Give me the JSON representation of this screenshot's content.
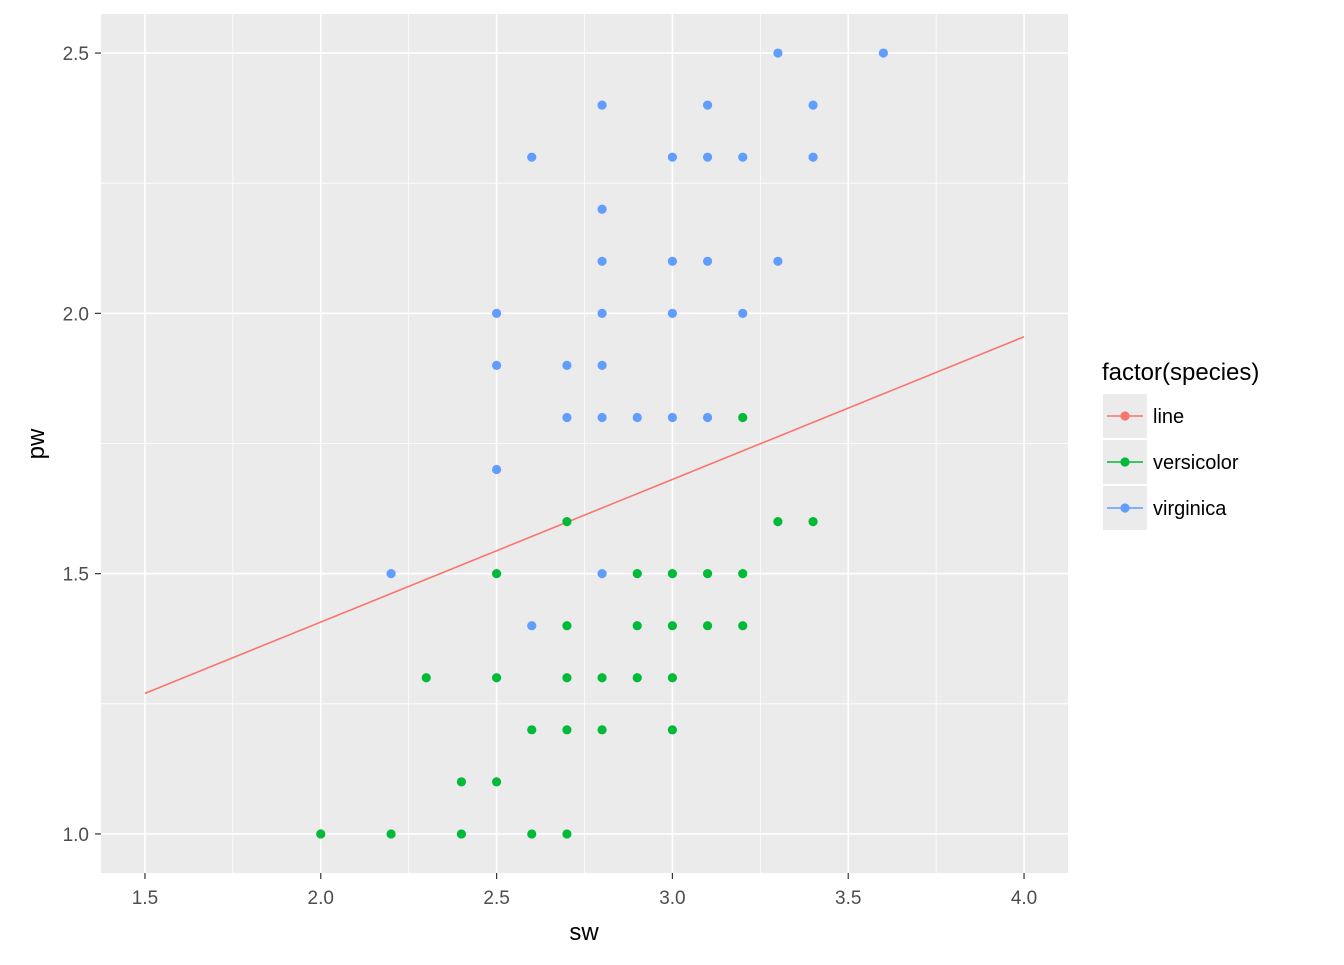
{
  "chart_data": {
    "type": "scatter",
    "xlabel": "sw",
    "ylabel": "pw",
    "xlim": [
      1.375,
      4.125
    ],
    "ylim": [
      0.925,
      2.575
    ],
    "x_ticks": [
      1.5,
      2.0,
      2.5,
      3.0,
      3.5,
      4.0
    ],
    "x_tick_labels": [
      "1.5",
      "2.0",
      "2.5",
      "3.0",
      "3.5",
      "4.0"
    ],
    "y_ticks": [
      1.0,
      1.5,
      2.0,
      2.5
    ],
    "y_tick_labels": [
      "1.0",
      "1.5",
      "2.0",
      "2.5"
    ],
    "grid": true,
    "legend": {
      "title": "factor(species)",
      "placement": "right",
      "entries": [
        "line",
        "versicolor",
        "virginica"
      ]
    },
    "series": [
      {
        "name": "line",
        "kind": "line",
        "color": "#F8766D",
        "points": [
          [
            1.5,
            1.27
          ],
          [
            4.0,
            1.955
          ]
        ]
      },
      {
        "name": "versicolor",
        "kind": "points",
        "color": "#00BA38",
        "points": [
          [
            2.0,
            1.0
          ],
          [
            2.2,
            1.0
          ],
          [
            2.4,
            1.0
          ],
          [
            2.6,
            1.0
          ],
          [
            2.7,
            1.0
          ],
          [
            2.4,
            1.1
          ],
          [
            2.5,
            1.1
          ],
          [
            2.6,
            1.2
          ],
          [
            2.7,
            1.2
          ],
          [
            2.8,
            1.2
          ],
          [
            3.0,
            1.2
          ],
          [
            2.3,
            1.3
          ],
          [
            2.5,
            1.3
          ],
          [
            2.7,
            1.3
          ],
          [
            2.8,
            1.3
          ],
          [
            2.9,
            1.3
          ],
          [
            3.0,
            1.3
          ],
          [
            2.7,
            1.4
          ],
          [
            2.9,
            1.4
          ],
          [
            3.0,
            1.4
          ],
          [
            3.1,
            1.4
          ],
          [
            3.2,
            1.4
          ],
          [
            2.5,
            1.5
          ],
          [
            2.9,
            1.5
          ],
          [
            3.0,
            1.5
          ],
          [
            3.1,
            1.5
          ],
          [
            3.2,
            1.5
          ],
          [
            2.7,
            1.6
          ],
          [
            3.3,
            1.6
          ],
          [
            3.4,
            1.6
          ],
          [
            3.2,
            1.8
          ]
        ]
      },
      {
        "name": "virginica",
        "kind": "points",
        "color": "#619CFF",
        "points": [
          [
            2.6,
            1.4
          ],
          [
            2.2,
            1.5
          ],
          [
            2.8,
            1.5
          ],
          [
            2.5,
            1.7
          ],
          [
            2.7,
            1.8
          ],
          [
            2.8,
            1.8
          ],
          [
            2.9,
            1.8
          ],
          [
            3.0,
            1.8
          ],
          [
            3.1,
            1.8
          ],
          [
            2.5,
            1.9
          ],
          [
            2.7,
            1.9
          ],
          [
            2.8,
            1.9
          ],
          [
            2.5,
            2.0
          ],
          [
            2.8,
            2.0
          ],
          [
            3.0,
            2.0
          ],
          [
            3.2,
            2.0
          ],
          [
            2.8,
            2.1
          ],
          [
            3.0,
            2.1
          ],
          [
            3.1,
            2.1
          ],
          [
            3.3,
            2.1
          ],
          [
            2.8,
            2.2
          ],
          [
            2.6,
            2.3
          ],
          [
            3.0,
            2.3
          ],
          [
            3.1,
            2.3
          ],
          [
            3.2,
            2.3
          ],
          [
            3.4,
            2.3
          ],
          [
            2.8,
            2.4
          ],
          [
            3.1,
            2.4
          ],
          [
            3.4,
            2.4
          ],
          [
            3.3,
            2.5
          ],
          [
            3.6,
            2.5
          ]
        ]
      }
    ]
  }
}
